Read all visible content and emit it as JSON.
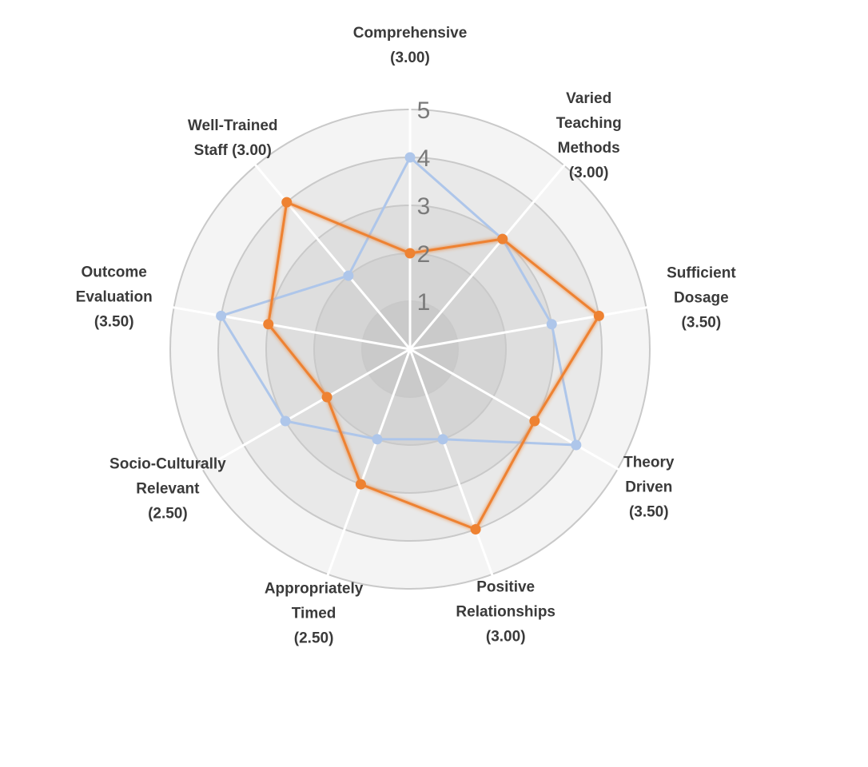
{
  "chart_data": {
    "type": "radar",
    "categories": [
      "Comprehensive\n(3.00)",
      "Varied\nTeaching\nMethods\n(3.00)",
      "Sufficient\nDosage\n(3.50)",
      "Theory\nDriven\n(3.50)",
      "Positive\nRelationships\n(3.00)",
      "Appropriately\nTimed\n(2.50)",
      "Socio-Culturally\nRelevant\n(2.50)",
      "Outcome\nEvaluation\n(3.50)",
      "Well-Trained\nStaff (3.00)"
    ],
    "rlim": [
      0,
      5
    ],
    "ticks": [
      "1",
      "2",
      "3",
      "4",
      "5"
    ],
    "series": [
      {
        "color": "#aec6ea",
        "values": [
          4,
          3,
          3,
          4,
          2,
          2,
          3,
          4,
          2
        ]
      },
      {
        "color": "#ee8232",
        "values": [
          2,
          3,
          4,
          3,
          4,
          3,
          2,
          3,
          4
        ]
      }
    ],
    "grid": true,
    "legend": "none",
    "colors": {
      "ring_fill": "#f1f1f1",
      "ring_stroke": "#c9c9c9",
      "spoke": "#ffffff"
    }
  }
}
